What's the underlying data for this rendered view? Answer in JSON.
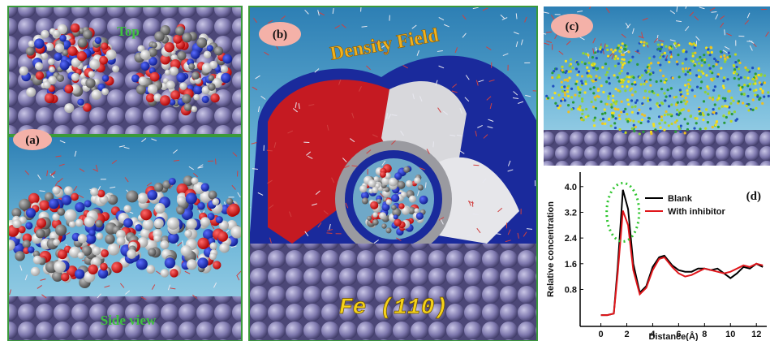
{
  "panel_a": {
    "top_label": "Top",
    "label": "(a)",
    "side_label": "Side view"
  },
  "panel_b": {
    "label": "(b)",
    "title": "Density Field",
    "surface": "Fe (110)"
  },
  "panel_c": {
    "label": "(c)"
  },
  "chart_data": {
    "type": "line",
    "label": "(d)",
    "x_label": "Distance(Å)",
    "y_label": "Relative concentration",
    "x": [
      0,
      0.5,
      1,
      1.3,
      1.7,
      2.1,
      2.5,
      3,
      3.5,
      4,
      4.5,
      4.9,
      5.5,
      6,
      6.5,
      7,
      7.5,
      8,
      8.5,
      9,
      9.5,
      10,
      10.5,
      11,
      11.5,
      12,
      12.5
    ],
    "series": [
      {
        "name": "Blank",
        "color": "#000000",
        "values": [
          0,
          0,
          0.05,
          1.5,
          3.9,
          3.3,
          1.6,
          0.7,
          0.9,
          1.5,
          1.8,
          1.85,
          1.55,
          1.4,
          1.35,
          1.35,
          1.45,
          1.45,
          1.4,
          1.45,
          1.3,
          1.15,
          1.3,
          1.5,
          1.45,
          1.6,
          1.5
        ]
      },
      {
        "name": "With inhibitor",
        "color": "#e0161b",
        "values": [
          0,
          0,
          0.05,
          1.3,
          3.25,
          2.8,
          1.4,
          0.65,
          0.85,
          1.4,
          1.75,
          1.8,
          1.5,
          1.3,
          1.2,
          1.25,
          1.35,
          1.45,
          1.4,
          1.35,
          1.3,
          1.35,
          1.45,
          1.55,
          1.5,
          1.6,
          1.55
        ]
      }
    ],
    "xlim": [
      -1.6,
      12.8
    ],
    "ylim": [
      -0.35,
      4.45
    ],
    "xticks": [
      0,
      2,
      4,
      6,
      8,
      10,
      12
    ],
    "yticks": [
      0.8,
      1.6,
      2.4,
      3.2,
      {
        "value": 4,
        "label": "4.0"
      }
    ],
    "legend": "upper right"
  }
}
